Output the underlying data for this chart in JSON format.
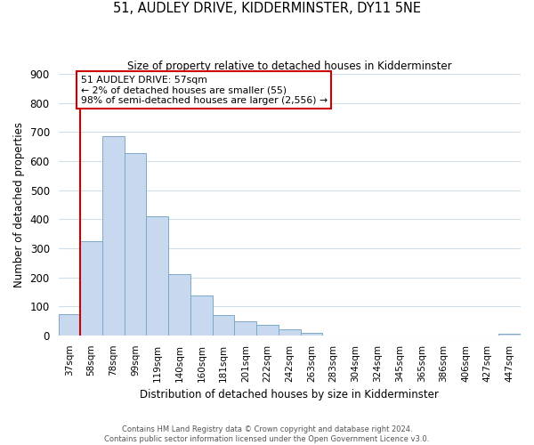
{
  "title": "51, AUDLEY DRIVE, KIDDERMINSTER, DY11 5NE",
  "subtitle": "Size of property relative to detached houses in Kidderminster",
  "xlabel": "Distribution of detached houses by size in Kidderminster",
  "ylabel": "Number of detached properties",
  "bar_labels": [
    "37sqm",
    "58sqm",
    "78sqm",
    "99sqm",
    "119sqm",
    "140sqm",
    "160sqm",
    "181sqm",
    "201sqm",
    "222sqm",
    "242sqm",
    "263sqm",
    "283sqm",
    "304sqm",
    "324sqm",
    "345sqm",
    "365sqm",
    "386sqm",
    "406sqm",
    "427sqm",
    "447sqm"
  ],
  "bar_values": [
    72,
    325,
    685,
    628,
    410,
    210,
    138,
    70,
    48,
    37,
    22,
    10,
    0,
    0,
    0,
    0,
    0,
    0,
    0,
    0,
    5
  ],
  "bar_color": "#c8d8ee",
  "bar_edge_color": "#7aaac8",
  "marker_line_color": "#cc0000",
  "annotation_title": "51 AUDLEY DRIVE: 57sqm",
  "annotation_line1": "← 2% of detached houses are smaller (55)",
  "annotation_line2": "98% of semi-detached houses are larger (2,556) →",
  "annotation_box_color": "#ffffff",
  "annotation_box_edge_color": "#cc0000",
  "ylim": [
    0,
    900
  ],
  "yticks": [
    0,
    100,
    200,
    300,
    400,
    500,
    600,
    700,
    800,
    900
  ],
  "bg_color": "#ffffff",
  "grid_color": "#d0dce8",
  "footer_line1": "Contains HM Land Registry data © Crown copyright and database right 2024.",
  "footer_line2": "Contains public sector information licensed under the Open Government Licence v3.0."
}
